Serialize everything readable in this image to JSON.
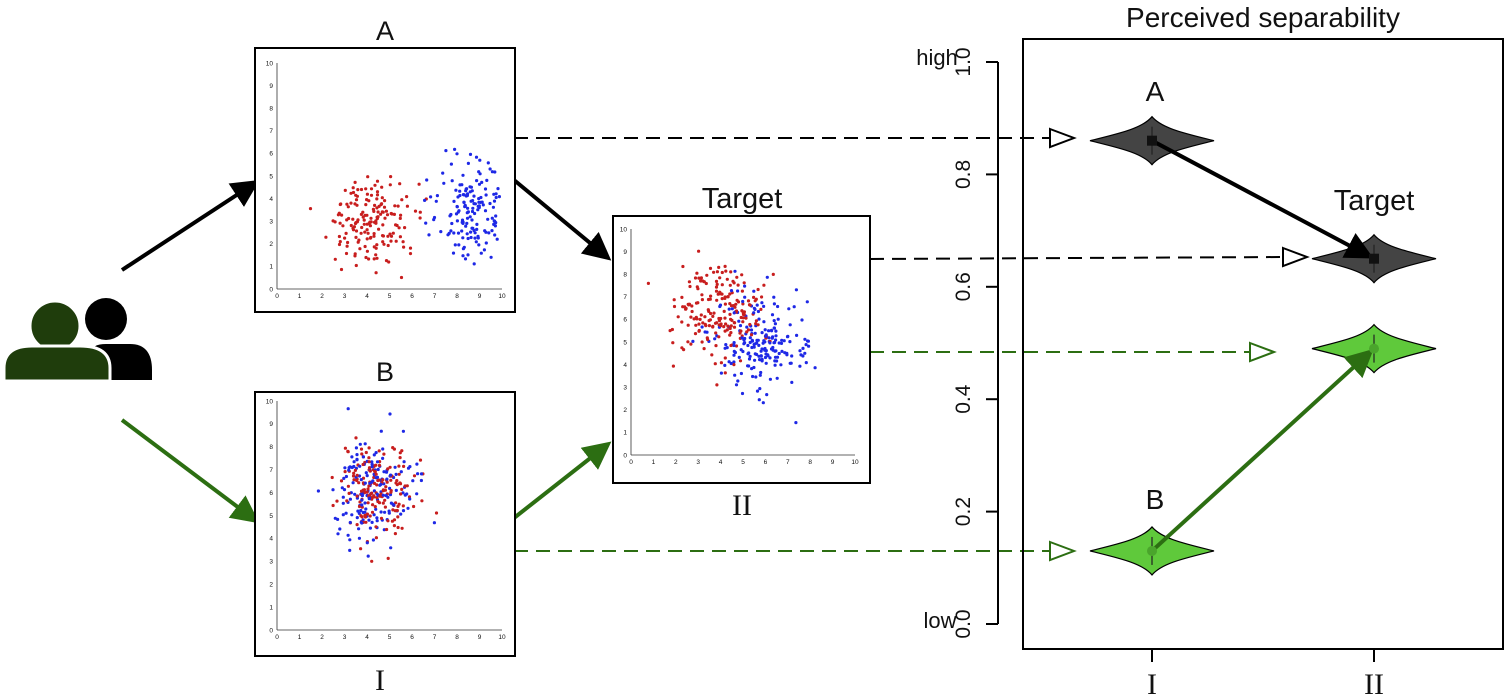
{
  "panels": {
    "a": {
      "title": "A",
      "tick_labels": [
        "0",
        "1",
        "2",
        "3",
        "4",
        "5",
        "6",
        "7",
        "8",
        "9",
        "10"
      ],
      "clusters": [
        {
          "color": "#c81e1e",
          "cx": 4.3,
          "cy": 3.0,
          "sx": 0.95,
          "sy": 0.95,
          "n": 170
        },
        {
          "color": "#1e28e6",
          "cx": 8.6,
          "cy": 3.4,
          "sx": 0.9,
          "sy": 1.0,
          "n": 170
        }
      ]
    },
    "b": {
      "title": "B",
      "bottom_label": "I",
      "tick_labels": [
        "0",
        "1",
        "2",
        "3",
        "4",
        "5",
        "6",
        "7",
        "8",
        "9",
        "10"
      ],
      "clusters": [
        {
          "color": "#c81e1e",
          "cx": 4.4,
          "cy": 6.2,
          "sx": 0.9,
          "sy": 1.0,
          "n": 170
        },
        {
          "color": "#1e28e6",
          "cx": 4.2,
          "cy": 6.0,
          "sx": 0.9,
          "sy": 1.1,
          "n": 170
        }
      ]
    },
    "target": {
      "title": "Target",
      "bottom_label": "II",
      "tick_labels": [
        "0",
        "1",
        "2",
        "3",
        "4",
        "5",
        "6",
        "7",
        "8",
        "9",
        "10"
      ],
      "clusters": [
        {
          "color": "#c81e1e",
          "cx": 3.9,
          "cy": 6.3,
          "sx": 1.0,
          "sy": 1.1,
          "n": 200
        },
        {
          "color": "#1e28e6",
          "cx": 5.9,
          "cy": 5.0,
          "sx": 1.1,
          "sy": 1.1,
          "n": 200
        }
      ]
    }
  },
  "chart": {
    "title": "Perceived separability",
    "yticks": [
      "0.0",
      "0.2",
      "0.4",
      "0.6",
      "0.8",
      "1.0"
    ],
    "y_low_label": "low",
    "y_high_label": "high",
    "xticks": [
      "I",
      "II"
    ],
    "point_a_label": "A",
    "point_b_label": "B",
    "point_target_label": "Target"
  },
  "chart_data": {
    "type": "violin",
    "ylim": [
      0,
      1
    ],
    "categories": [
      "I",
      "II"
    ],
    "series": [
      {
        "color": "#444444",
        "values": [
          0.86,
          0.65
        ]
      },
      {
        "color": "#5fc93b",
        "values": [
          0.13,
          0.49
        ]
      }
    ]
  },
  "colors": {
    "black_flow": "#000000",
    "green_flow": "#2c6e12",
    "dark_violin": "#444444",
    "green_violin": "#5fc93b",
    "person_front": "#1f3d0c",
    "person_back": "#000000"
  },
  "icons": {
    "users": "users-icon"
  }
}
